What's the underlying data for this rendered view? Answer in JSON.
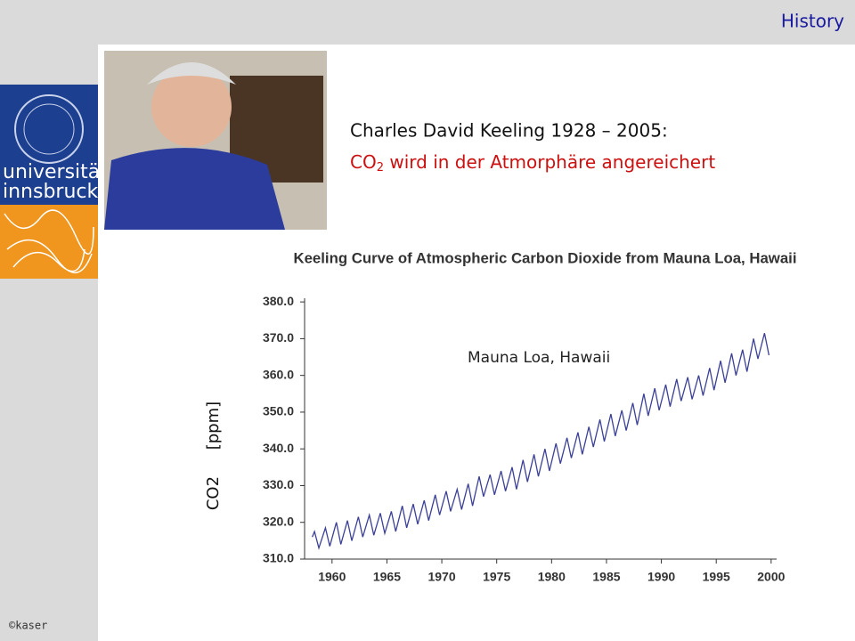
{
  "slide": {
    "section": "History",
    "logo_lines": [
      "universität",
      "innsbruck"
    ],
    "heading": "Charles David Keeling 1928 – 2005:",
    "subheading": [
      "CO",
      "2",
      " wird in der Atmorphäre angereichert"
    ],
    "footer": "©kaser"
  },
  "chart_data": {
    "type": "line",
    "title": "Keeling Curve of Atmospheric Carbon Dioxide from Mauna Loa, Hawaii",
    "annotation": "Mauna Loa, Hawaii",
    "ylabel": "CO2 [ppm]",
    "color": "#3b4096",
    "x": [
      1958.2,
      1958.4,
      1958.8,
      1959.4,
      1959.8,
      1960.4,
      1960.8,
      1961.4,
      1961.8,
      1962.4,
      1962.8,
      1963.4,
      1963.8,
      1964.4,
      1964.8,
      1965.4,
      1965.8,
      1966.4,
      1966.8,
      1967.4,
      1967.8,
      1968.4,
      1968.8,
      1969.4,
      1969.8,
      1970.4,
      1970.8,
      1971.4,
      1971.8,
      1972.4,
      1972.8,
      1973.4,
      1973.8,
      1974.4,
      1974.8,
      1975.4,
      1975.8,
      1976.4,
      1976.8,
      1977.4,
      1977.8,
      1978.4,
      1978.8,
      1979.4,
      1979.8,
      1980.4,
      1980.8,
      1981.4,
      1981.8,
      1982.4,
      1982.8,
      1983.4,
      1983.8,
      1984.4,
      1984.8,
      1985.4,
      1985.8,
      1986.4,
      1986.8,
      1987.4,
      1987.8,
      1988.4,
      1988.8,
      1989.4,
      1989.8,
      1990.4,
      1990.8,
      1991.4,
      1991.8,
      1992.4,
      1992.8,
      1993.4,
      1993.8,
      1994.4,
      1994.8,
      1995.4,
      1995.8,
      1996.4,
      1996.8,
      1997.4,
      1997.8,
      1998.4,
      1998.8,
      1999.4,
      1999.8
    ],
    "values": [
      316,
      317.5,
      313,
      318.5,
      313.5,
      320,
      314,
      320.5,
      315,
      321.5,
      316,
      322,
      316.5,
      322.5,
      317,
      323,
      317.5,
      324.5,
      318.5,
      325,
      319.5,
      326,
      320.5,
      327.5,
      322,
      328.5,
      323,
      329,
      323.5,
      330.5,
      324.5,
      332.5,
      327,
      333,
      327.5,
      334,
      328.5,
      335,
      329,
      337,
      331,
      338.5,
      332.5,
      340,
      334,
      341.5,
      336,
      343,
      337.5,
      344.5,
      338.5,
      346,
      340.5,
      348,
      342,
      349.5,
      343.5,
      350.5,
      345,
      352.5,
      346.5,
      355,
      349,
      356.5,
      350.5,
      357.5,
      351.5,
      359,
      353,
      359.5,
      353.5,
      360,
      354.5,
      362,
      356,
      364,
      358,
      366,
      360,
      367,
      361,
      370,
      364.5,
      371.5,
      365.5
    ],
    "xlim": [
      1957.5,
      2000.5
    ],
    "xticks": [
      1960,
      1965,
      1970,
      1975,
      1980,
      1985,
      1990,
      1995,
      2000
    ],
    "ylim": [
      310,
      381
    ],
    "yticks": [
      {
        "value": 310,
        "label": "310.0"
      },
      {
        "value": 320,
        "label": "320.0"
      },
      {
        "value": 330,
        "label": "330.0"
      },
      {
        "value": 340,
        "label": "340.0"
      },
      {
        "value": 350,
        "label": "350.0"
      },
      {
        "value": 360,
        "label": "360.0"
      },
      {
        "value": 370,
        "label": "370.0"
      },
      {
        "value": 380,
        "label": "380.0"
      }
    ]
  }
}
